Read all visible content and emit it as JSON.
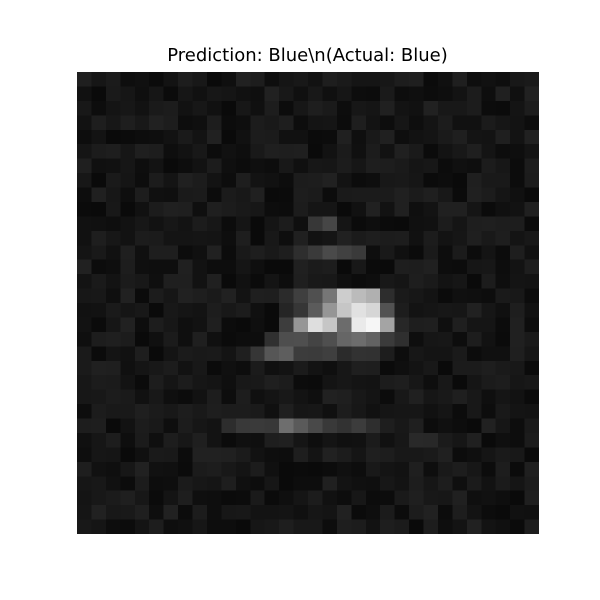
{
  "chart_data": {
    "type": "heatmap",
    "title": "Prediction: Blue\\n(Actual: Blue)",
    "colormap": "gray",
    "vmin": 0,
    "vmax": 255,
    "grid": false,
    "axes_visible": false,
    "rows": 32,
    "cols": 32,
    "values": [
      [
        31,
        22,
        27,
        14,
        16,
        11,
        19,
        29,
        24,
        10,
        15,
        33,
        29,
        14,
        21,
        24,
        18,
        30,
        26,
        21,
        21,
        23,
        29,
        31,
        11,
        16,
        31,
        14,
        17,
        14,
        24,
        26
      ],
      [
        17,
        10,
        26,
        22,
        15,
        22,
        11,
        22,
        17,
        23,
        21,
        17,
        15,
        33,
        24,
        16,
        24,
        16,
        22,
        13,
        12,
        26,
        13,
        15,
        12,
        14,
        19,
        28,
        14,
        32,
        16,
        33
      ],
      [
        24,
        13,
        20,
        23,
        18,
        26,
        28,
        18,
        23,
        17,
        10,
        23,
        16,
        29,
        12,
        23,
        30,
        26,
        13,
        23,
        21,
        32,
        19,
        17,
        33,
        24,
        24,
        28,
        12,
        11,
        20,
        29
      ],
      [
        18,
        30,
        23,
        30,
        24,
        33,
        29,
        13,
        15,
        29,
        12,
        14,
        28,
        25,
        30,
        13,
        20,
        21,
        12,
        30,
        19,
        13,
        22,
        14,
        20,
        28,
        17,
        17,
        27,
        22,
        19,
        13
      ],
      [
        13,
        19,
        10,
        11,
        13,
        14,
        18,
        26,
        19,
        33,
        10,
        17,
        28,
        27,
        17,
        17,
        11,
        12,
        32,
        15,
        25,
        32,
        14,
        18,
        20,
        26,
        31,
        20,
        19,
        31,
        19,
        33
      ],
      [
        21,
        28,
        30,
        22,
        31,
        29,
        14,
        18,
        24,
        12,
        17,
        14,
        25,
        31,
        30,
        31,
        10,
        18,
        27,
        16,
        28,
        18,
        32,
        26,
        11,
        19,
        24,
        31,
        20,
        13,
        14,
        20
      ],
      [
        31,
        16,
        17,
        22,
        14,
        19,
        10,
        13,
        18,
        28,
        15,
        12,
        15,
        13,
        24,
        16,
        23,
        22,
        28,
        22,
        30,
        29,
        26,
        21,
        23,
        12,
        16,
        14,
        28,
        23,
        12,
        29
      ],
      [
        23,
        10,
        26,
        21,
        13,
        28,
        20,
        32,
        28,
        19,
        13,
        30,
        19,
        17,
        13,
        28,
        29,
        33,
        19,
        12,
        14,
        24,
        25,
        22,
        11,
        13,
        10,
        31,
        25,
        25,
        12,
        28
      ],
      [
        13,
        32,
        23,
        14,
        29,
        16,
        15,
        26,
        27,
        12,
        27,
        24,
        32,
        10,
        11,
        29,
        27,
        12,
        26,
        27,
        27,
        27,
        32,
        27,
        31,
        24,
        11,
        32,
        28,
        21,
        16,
        10
      ],
      [
        11,
        10,
        24,
        10,
        17,
        28,
        32,
        31,
        15,
        31,
        28,
        25,
        23,
        13,
        12,
        28,
        21,
        21,
        10,
        17,
        33,
        18,
        32,
        15,
        19,
        32,
        32,
        21,
        11,
        16,
        18,
        32
      ],
      [
        17,
        16,
        14,
        18,
        23,
        18,
        23,
        19,
        28,
        23,
        12,
        21,
        10,
        21,
        28,
        15,
        55,
        70,
        21,
        11,
        14,
        11,
        10,
        16,
        17,
        28,
        21,
        30,
        31,
        29,
        29,
        11
      ],
      [
        17,
        30,
        23,
        18,
        28,
        27,
        20,
        20,
        21,
        20,
        14,
        30,
        10,
        24,
        14,
        32,
        18,
        21,
        33,
        27,
        30,
        28,
        29,
        17,
        28,
        19,
        22,
        31,
        25,
        30,
        20,
        24
      ],
      [
        20,
        25,
        17,
        31,
        16,
        30,
        30,
        12,
        16,
        33,
        12,
        25,
        30,
        25,
        30,
        46,
        58,
        74,
        65,
        58,
        14,
        25,
        16,
        11,
        26,
        13,
        27,
        12,
        20,
        12,
        30,
        17
      ],
      [
        33,
        12,
        14,
        29,
        15,
        14,
        14,
        32,
        18,
        13,
        13,
        21,
        15,
        10,
        10,
        32,
        27,
        29,
        10,
        24,
        11,
        10,
        30,
        29,
        32,
        13,
        12,
        22,
        23,
        13,
        19,
        30
      ],
      [
        19,
        26,
        19,
        27,
        24,
        15,
        31,
        31,
        18,
        32,
        10,
        17,
        11,
        20,
        13,
        31,
        25,
        24,
        16,
        12,
        14,
        24,
        21,
        30,
        26,
        19,
        22,
        10,
        28,
        14,
        20,
        19
      ],
      [
        23,
        24,
        15,
        33,
        11,
        28,
        22,
        33,
        30,
        26,
        33,
        19,
        31,
        30,
        43,
        63,
        80,
        118,
        205,
        187,
        176,
        45,
        26,
        23,
        19,
        11,
        16,
        15,
        13,
        26,
        24,
        12
      ],
      [
        17,
        18,
        26,
        21,
        24,
        10,
        24,
        21,
        19,
        29,
        24,
        28,
        16,
        10,
        37,
        54,
        91,
        150,
        198,
        225,
        214,
        82,
        29,
        19,
        21,
        23,
        22,
        33,
        22,
        16,
        30,
        17
      ],
      [
        18,
        11,
        22,
        33,
        13,
        29,
        23,
        15,
        18,
        31,
        12,
        10,
        15,
        10,
        61,
        150,
        222,
        198,
        108,
        234,
        246,
        164,
        39,
        30,
        31,
        15,
        31,
        21,
        21,
        12,
        32,
        13
      ],
      [
        15,
        29,
        31,
        28,
        10,
        16,
        27,
        15,
        31,
        16,
        11,
        13,
        13,
        48,
        78,
        79,
        68,
        79,
        102,
        109,
        98,
        59,
        47,
        14,
        22,
        23,
        13,
        29,
        18,
        11,
        32,
        26
      ],
      [
        26,
        11,
        20,
        17,
        30,
        10,
        20,
        27,
        25,
        26,
        20,
        31,
        54,
        86,
        94,
        60,
        59,
        63,
        43,
        50,
        49,
        29,
        13,
        23,
        20,
        20,
        26,
        12,
        16,
        16,
        31,
        22
      ],
      [
        26,
        32,
        31,
        16,
        21,
        24,
        28,
        18,
        24,
        11,
        16,
        13,
        27,
        16,
        19,
        27,
        19,
        15,
        23,
        31,
        30,
        11,
        15,
        19,
        24,
        10,
        27,
        27,
        30,
        26,
        24,
        11
      ],
      [
        23,
        28,
        27,
        19,
        11,
        29,
        21,
        28,
        22,
        20,
        15,
        24,
        25,
        31,
        28,
        12,
        11,
        20,
        23,
        20,
        19,
        28,
        30,
        23,
        14,
        24,
        10,
        21,
        27,
        29,
        22,
        24
      ],
      [
        23,
        24,
        28,
        26,
        17,
        24,
        15,
        12,
        18,
        29,
        13,
        29,
        16,
        20,
        24,
        19,
        15,
        33,
        31,
        24,
        20,
        12,
        24,
        32,
        22,
        25,
        31,
        24,
        15,
        21,
        18,
        11
      ],
      [
        13,
        28,
        25,
        25,
        31,
        27,
        24,
        29,
        25,
        30,
        28,
        28,
        26,
        16,
        31,
        22,
        23,
        16,
        29,
        23,
        17,
        21,
        22,
        22,
        17,
        21,
        12,
        24,
        13,
        25,
        20,
        19
      ],
      [
        29,
        30,
        10,
        18,
        28,
        25,
        14,
        28,
        22,
        19,
        45,
        57,
        58,
        56,
        110,
        90,
        73,
        57,
        50,
        60,
        46,
        30,
        24,
        31,
        12,
        16,
        13,
        10,
        33,
        22,
        13,
        26
      ],
      [
        16,
        22,
        29,
        14,
        27,
        15,
        29,
        23,
        31,
        19,
        11,
        16,
        15,
        30,
        32,
        21,
        14,
        20,
        16,
        17,
        27,
        17,
        23,
        41,
        40,
        27,
        22,
        32,
        10,
        15,
        13,
        28
      ],
      [
        14,
        22,
        21,
        10,
        16,
        26,
        25,
        12,
        33,
        33,
        32,
        27,
        18,
        14,
        13,
        30,
        20,
        33,
        28,
        21,
        31,
        29,
        24,
        24,
        26,
        32,
        12,
        15,
        21,
        26,
        24,
        10
      ],
      [
        30,
        17,
        15,
        23,
        33,
        17,
        16,
        11,
        27,
        29,
        24,
        20,
        28,
        16,
        10,
        11,
        10,
        12,
        16,
        13,
        25,
        20,
        18,
        31,
        14,
        25,
        29,
        23,
        12,
        29,
        11,
        31
      ],
      [
        22,
        24,
        17,
        12,
        28,
        13,
        14,
        27,
        23,
        21,
        30,
        16,
        13,
        22,
        10,
        13,
        13,
        32,
        19,
        16,
        15,
        23,
        19,
        29,
        22,
        29,
        15,
        27,
        18,
        27,
        21,
        28
      ],
      [
        20,
        24,
        27,
        31,
        23,
        11,
        20,
        30,
        15,
        14,
        11,
        12,
        26,
        11,
        15,
        21,
        28,
        17,
        13,
        23,
        12,
        12,
        26,
        31,
        24,
        23,
        32,
        15,
        17,
        14,
        10,
        31
      ],
      [
        21,
        33,
        24,
        25,
        31,
        14,
        33,
        12,
        28,
        14,
        23,
        24,
        19,
        19,
        20,
        16,
        22,
        20,
        33,
        11,
        14,
        27,
        12,
        28,
        33,
        12,
        29,
        19,
        12,
        10,
        17,
        16
      ],
      [
        24,
        21,
        13,
        12,
        20,
        29,
        14,
        16,
        22,
        13,
        13,
        10,
        22,
        24,
        30,
        24,
        24,
        13,
        30,
        28,
        18,
        30,
        27,
        10,
        29,
        14,
        19,
        33,
        19,
        16,
        11,
        29
      ]
    ]
  }
}
